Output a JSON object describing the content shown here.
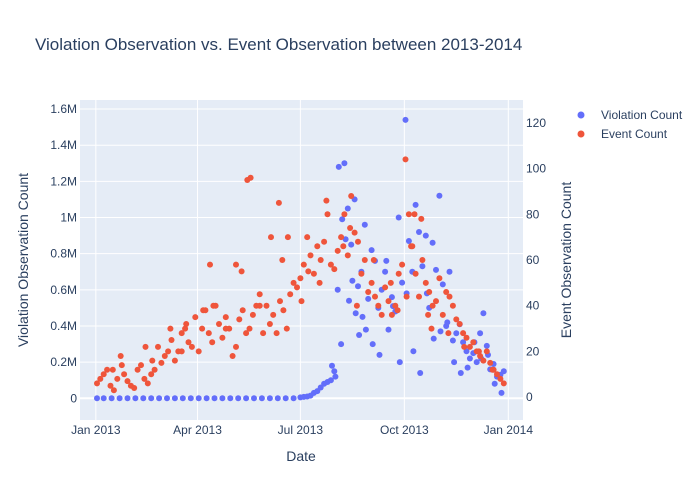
{
  "chart_data": {
    "type": "scatter",
    "title": "Violation Observation vs. Event Observation between 2013-2014",
    "xlabel": "Date",
    "ylabel": "Violation Observation Count",
    "y2label": "Event Observation Count",
    "x_ticks": [
      "Jan 2013",
      "Apr 2013",
      "Jul 2013",
      "Oct 2013",
      "Jan 2014"
    ],
    "x_range": [
      "2012-12-18",
      "2014-01-14"
    ],
    "y_ticks": [
      "0",
      "0.2M",
      "0.4M",
      "0.6M",
      "0.8M",
      "1M",
      "1.2M",
      "1.4M",
      "1.6M"
    ],
    "ylim": [
      -120000,
      1650000
    ],
    "y2_ticks": [
      "0",
      "20",
      "40",
      "60",
      "80",
      "100",
      "120"
    ],
    "y2lim": [
      -10,
      130
    ],
    "grid": true,
    "legend_position": "top-right",
    "colors": {
      "violation": "#636efa",
      "event": "#ef553b"
    },
    "series": [
      {
        "name": "Violation Count",
        "axis": "y",
        "x": [
          "2013-01-02",
          "2013-01-08",
          "2013-01-15",
          "2013-01-22",
          "2013-01-29",
          "2013-02-05",
          "2013-02-12",
          "2013-02-19",
          "2013-02-26",
          "2013-03-05",
          "2013-03-12",
          "2013-03-19",
          "2013-03-26",
          "2013-04-02",
          "2013-04-09",
          "2013-04-16",
          "2013-04-23",
          "2013-04-30",
          "2013-05-07",
          "2013-05-14",
          "2013-05-21",
          "2013-05-28",
          "2013-06-04",
          "2013-06-11",
          "2013-06-18",
          "2013-06-25",
          "2013-07-01",
          "2013-07-04",
          "2013-07-07",
          "2013-07-10",
          "2013-07-13",
          "2013-07-16",
          "2013-07-19",
          "2013-07-22",
          "2013-07-25",
          "2013-07-28",
          "2013-07-31",
          "2013-08-03",
          "2013-08-06",
          "2013-08-09",
          "2013-08-12",
          "2013-08-15",
          "2013-08-18",
          "2013-08-21",
          "2013-08-24",
          "2013-08-27",
          "2013-08-30",
          "2013-09-02",
          "2013-09-05",
          "2013-09-08",
          "2013-09-11",
          "2013-09-14",
          "2013-09-17",
          "2013-09-20",
          "2013-09-23",
          "2013-09-26",
          "2013-09-29",
          "2013-10-02",
          "2013-10-05",
          "2013-10-08",
          "2013-10-11",
          "2013-10-14",
          "2013-10-17",
          "2013-10-20",
          "2013-10-23",
          "2013-10-26",
          "2013-10-29",
          "2013-11-01",
          "2013-11-04",
          "2013-11-07",
          "2013-11-10",
          "2013-11-13",
          "2013-11-16",
          "2013-11-19",
          "2013-11-22",
          "2013-11-25",
          "2013-11-28",
          "2013-12-01",
          "2013-12-04",
          "2013-12-07",
          "2013-12-10",
          "2013-12-13",
          "2013-12-16",
          "2013-12-19",
          "2013-12-22",
          "2013-12-25",
          "2013-12-28",
          "2013-07-29",
          "2013-08-01",
          "2013-08-04",
          "2013-08-07",
          "2013-08-10",
          "2013-08-13",
          "2013-08-16",
          "2013-08-19",
          "2013-08-22",
          "2013-08-25",
          "2013-08-28",
          "2013-09-03",
          "2013-09-09",
          "2013-09-15",
          "2013-09-21",
          "2013-09-27",
          "2013-10-03",
          "2013-10-09",
          "2013-10-15",
          "2013-10-21",
          "2013-10-27",
          "2013-11-02",
          "2013-11-08",
          "2013-11-14",
          "2013-11-20",
          "2013-11-26",
          "2013-12-02",
          "2013-12-08",
          "2013-12-14",
          "2013-12-20",
          "2013-12-26"
        ],
        "y": [
          0,
          0,
          0,
          0,
          0,
          0,
          0,
          0,
          0,
          0,
          0,
          0,
          0,
          0,
          0,
          0,
          0,
          0,
          0,
          0,
          0,
          0,
          0,
          0,
          0,
          0,
          5000,
          8000,
          10000,
          15000,
          30000,
          40000,
          60000,
          80000,
          90000,
          100000,
          150000,
          600000,
          300000,
          1300000,
          1050000,
          850000,
          1100000,
          620000,
          700000,
          960000,
          550000,
          820000,
          760000,
          500000,
          600000,
          700000,
          380000,
          560000,
          480000,
          1000000,
          640000,
          1540000,
          870000,
          700000,
          1070000,
          920000,
          730000,
          900000,
          500000,
          860000,
          710000,
          1120000,
          630000,
          400000,
          700000,
          320000,
          360000,
          410000,
          310000,
          260000,
          220000,
          250000,
          200000,
          360000,
          470000,
          290000,
          160000,
          190000,
          120000,
          130000,
          150000,
          180000,
          120000,
          1280000,
          990000,
          880000,
          540000,
          650000,
          470000,
          350000,
          450000,
          380000,
          300000,
          240000,
          760000,
          510000,
          200000,
          580000,
          260000,
          140000,
          580000,
          330000,
          370000,
          420000,
          200000,
          140000,
          170000,
          310000,
          220000,
          240000,
          80000,
          30000
        ]
      },
      {
        "name": "Event Count",
        "axis": "y2",
        "x": [
          "2013-01-02",
          "2013-01-05",
          "2013-01-08",
          "2013-01-11",
          "2013-01-14",
          "2013-01-17",
          "2013-01-20",
          "2013-01-23",
          "2013-01-26",
          "2013-01-29",
          "2013-02-01",
          "2013-02-04",
          "2013-02-07",
          "2013-02-10",
          "2013-02-13",
          "2013-02-16",
          "2013-02-19",
          "2013-02-22",
          "2013-02-25",
          "2013-02-28",
          "2013-03-03",
          "2013-03-06",
          "2013-03-09",
          "2013-03-12",
          "2013-03-15",
          "2013-03-18",
          "2013-03-21",
          "2013-03-24",
          "2013-03-27",
          "2013-03-30",
          "2013-04-02",
          "2013-04-05",
          "2013-04-08",
          "2013-04-11",
          "2013-04-14",
          "2013-04-17",
          "2013-04-20",
          "2013-04-23",
          "2013-04-26",
          "2013-04-29",
          "2013-05-02",
          "2013-05-05",
          "2013-05-08",
          "2013-05-11",
          "2013-05-14",
          "2013-05-17",
          "2013-05-20",
          "2013-05-23",
          "2013-05-26",
          "2013-05-29",
          "2013-06-01",
          "2013-06-04",
          "2013-06-07",
          "2013-06-10",
          "2013-06-13",
          "2013-06-16",
          "2013-06-19",
          "2013-06-22",
          "2013-06-25",
          "2013-06-28",
          "2013-07-01",
          "2013-07-04",
          "2013-07-07",
          "2013-07-10",
          "2013-07-13",
          "2013-07-16",
          "2013-07-19",
          "2013-07-22",
          "2013-07-25",
          "2013-07-28",
          "2013-07-31",
          "2013-08-03",
          "2013-08-06",
          "2013-08-09",
          "2013-08-12",
          "2013-08-15",
          "2013-08-18",
          "2013-08-21",
          "2013-08-24",
          "2013-08-27",
          "2013-08-30",
          "2013-09-02",
          "2013-09-05",
          "2013-09-08",
          "2013-09-11",
          "2013-09-14",
          "2013-09-17",
          "2013-09-20",
          "2013-09-23",
          "2013-09-26",
          "2013-09-29",
          "2013-10-02",
          "2013-10-05",
          "2013-10-08",
          "2013-10-11",
          "2013-10-14",
          "2013-10-17",
          "2013-10-20",
          "2013-10-23",
          "2013-10-26",
          "2013-10-29",
          "2013-11-01",
          "2013-11-04",
          "2013-11-07",
          "2013-11-10",
          "2013-11-13",
          "2013-11-16",
          "2013-11-19",
          "2013-11-22",
          "2013-11-25",
          "2013-11-28",
          "2013-12-01",
          "2013-12-04",
          "2013-12-07",
          "2013-12-10",
          "2013-12-13",
          "2013-12-16",
          "2013-12-19",
          "2013-12-22",
          "2013-12-25",
          "2013-12-28",
          "2013-05-15",
          "2013-05-18",
          "2013-05-10",
          "2013-06-12",
          "2013-06-20",
          "2013-07-08",
          "2013-07-24",
          "2013-08-08",
          "2013-08-14",
          "2013-10-03",
          "2013-10-07",
          "2013-10-10",
          "2013-10-16",
          "2013-09-25",
          "2013-10-22",
          "2013-04-12",
          "2013-04-15",
          "2013-05-05",
          "2013-03-08",
          "2013-02-20",
          "2013-01-16",
          "2013-03-18",
          "2013-04-26",
          "2013-07-18",
          "2013-06-05",
          "2013-01-24",
          "2013-02-14",
          "2013-03-22",
          "2013-04-06",
          "2013-05-26",
          "2013-06-15",
          "2013-07-02",
          "2013-08-20",
          "2013-09-04",
          "2013-09-19",
          "2013-10-25",
          "2013-11-09",
          "2013-11-23",
          "2013-12-06",
          "2013-12-18"
        ],
        "y": [
          6,
          8,
          10,
          12,
          5,
          3,
          8,
          18,
          10,
          7,
          5,
          4,
          12,
          14,
          8,
          6,
          10,
          12,
          22,
          15,
          18,
          20,
          25,
          16,
          20,
          28,
          30,
          24,
          22,
          35,
          20,
          30,
          38,
          28,
          24,
          40,
          32,
          26,
          35,
          30,
          18,
          22,
          34,
          38,
          28,
          30,
          36,
          40,
          45,
          28,
          40,
          32,
          36,
          28,
          42,
          38,
          30,
          45,
          50,
          48,
          52,
          58,
          70,
          62,
          54,
          66,
          60,
          68,
          80,
          58,
          56,
          64,
          70,
          80,
          62,
          88,
          72,
          68,
          54,
          60,
          46,
          50,
          44,
          40,
          36,
          48,
          42,
          36,
          40,
          54,
          58,
          104,
          80,
          66,
          54,
          44,
          60,
          50,
          46,
          40,
          42,
          52,
          36,
          46,
          44,
          40,
          34,
          32,
          28,
          26,
          22,
          24,
          20,
          18,
          16,
          20,
          15,
          12,
          10,
          8,
          6,
          95,
          96,
          55,
          85,
          70,
          55,
          86,
          66,
          74,
          44,
          66,
          80,
          78,
          38,
          36,
          58,
          40,
          58,
          30,
          16,
          12,
          20,
          30,
          50,
          70,
          14,
          22,
          32,
          38,
          40,
          60,
          42,
          40,
          60,
          50,
          30,
          28,
          22,
          20,
          12
        ]
      }
    ]
  },
  "legend": {
    "items": [
      {
        "label": "Violation Count",
        "color": "#636efa"
      },
      {
        "label": "Event Count",
        "color": "#ef553b"
      }
    ]
  }
}
